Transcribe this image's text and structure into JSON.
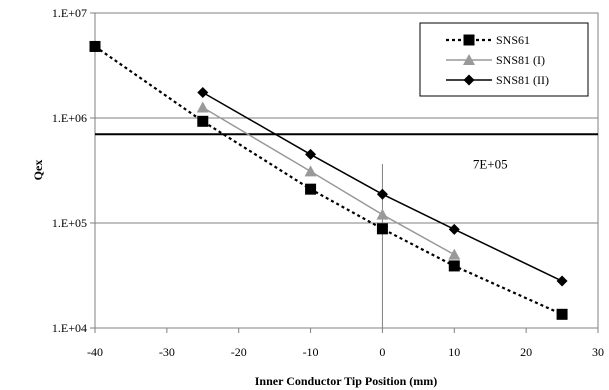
{
  "chart_data": {
    "type": "line",
    "title": "",
    "xlabel": "Inner Conductor Tip Position (mm)",
    "ylabel": "Qex",
    "xlim": [
      -40,
      30
    ],
    "ylim": [
      10000,
      10000000
    ],
    "y_scale": "log",
    "x_ticks": [
      -40,
      -30,
      -20,
      -10,
      0,
      10,
      20,
      30
    ],
    "x_tick_labels": [
      "-40",
      "-30",
      "-20",
      "-10",
      "0",
      "10",
      "20",
      "30"
    ],
    "y_ticks": [
      10000,
      100000,
      1000000,
      10000000
    ],
    "y_tick_labels": [
      "1.E+04",
      "1.E+05",
      "1.E+06",
      "1.E+07"
    ],
    "grid": "horizontal at decades; vertical line at x = 0",
    "legend_position": "top-right",
    "series": [
      {
        "name": "SNS61",
        "marker": "square",
        "line_style": "dotted",
        "color": "#000000",
        "x": [
          -40,
          -25,
          -10,
          0,
          10,
          25
        ],
        "y": [
          4800000,
          930000,
          210000,
          88000,
          39000,
          13500
        ]
      },
      {
        "name": "SNS81 (I)",
        "marker": "triangle",
        "line_style": "solid",
        "color": "#999999",
        "x": [
          -25,
          -10,
          0,
          10
        ],
        "y": [
          1260000,
          310000,
          120000,
          50000
        ]
      },
      {
        "name": "SNS81 (II)",
        "marker": "diamond",
        "line_style": "solid",
        "color": "#000000",
        "x": [
          -25,
          -10,
          0,
          10,
          25
        ],
        "y": [
          1750000,
          450000,
          188000,
          87000,
          28000
        ]
      }
    ],
    "reference_line": {
      "y": 700000,
      "label": "7E+05"
    }
  }
}
